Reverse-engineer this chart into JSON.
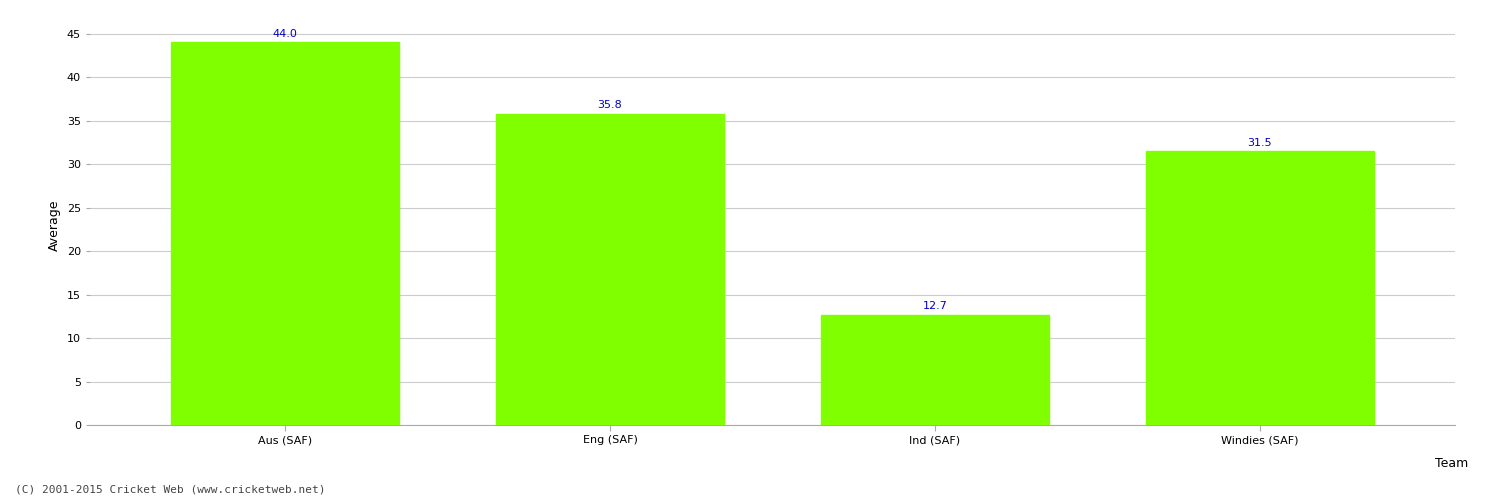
{
  "categories": [
    "Aus (SAF)",
    "Eng (SAF)",
    "Ind (SAF)",
    "Windies (SAF)"
  ],
  "values": [
    44.0,
    35.8,
    12.7,
    31.5
  ],
  "bar_color": "#7fff00",
  "bar_edge_color": "#7fff00",
  "xlabel": "Team",
  "ylabel": "Average",
  "ylim": [
    0,
    46
  ],
  "yticks": [
    0,
    5,
    10,
    15,
    20,
    25,
    30,
    35,
    40,
    45
  ],
  "label_color": "#0000cc",
  "label_fontsize": 8,
  "axis_label_fontsize": 9,
  "tick_fontsize": 8,
  "grid_color": "#cccccc",
  "background_color": "#ffffff",
  "footer_text": "(C) 2001-2015 Cricket Web (www.cricketweb.net)",
  "footer_fontsize": 8,
  "footer_color": "#444444"
}
